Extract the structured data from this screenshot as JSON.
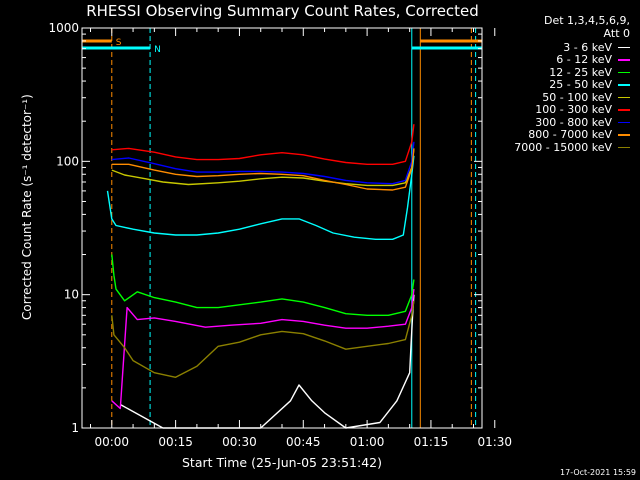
{
  "chart_data": {
    "type": "line",
    "title": "RHESSI Observing Summary Count Rates, Corrected",
    "xlabel": "Start Time (25-Jun-05 23:51:42)",
    "ylabel": "Corrected Count Rate (s⁻¹ detector⁻¹)",
    "yscale": "log",
    "ylim": [
      1,
      1000
    ],
    "xlim_min": [
      -7,
      87
    ],
    "y_ticks": [
      "1",
      "10",
      "100",
      "1000"
    ],
    "x_ticks": [
      {
        "t": 0,
        "label": "00:00"
      },
      {
        "t": 15,
        "label": "00:15"
      },
      {
        "t": 30,
        "label": "00:30"
      },
      {
        "t": 45,
        "label": "00:45"
      },
      {
        "t": 60,
        "label": "01:00"
      },
      {
        "t": 75,
        "label": "01:15"
      },
      {
        "t": 90,
        "label": "01:30"
      }
    ],
    "legend_header": [
      "Det 1,3,4,5,6,9,",
      "Att 0"
    ],
    "series": [
      {
        "name": "3 - 6 keV",
        "color": "#ffffff",
        "points": [
          [
            2,
            1.5
          ],
          [
            12,
            1
          ],
          [
            35,
            1
          ],
          [
            42,
            1.6
          ],
          [
            44,
            2.1
          ],
          [
            47,
            1.6
          ],
          [
            50,
            1.3
          ],
          [
            55,
            1
          ],
          [
            63,
            1.1
          ],
          [
            67,
            1.6
          ],
          [
            70,
            2.6
          ],
          [
            70.3,
            4
          ],
          [
            70.7,
            7
          ],
          [
            71,
            10
          ]
        ]
      },
      {
        "name": "6 - 12 keV",
        "color": "#ff00ff",
        "points": [
          [
            0,
            1.6
          ],
          [
            2,
            1.4
          ],
          [
            3.6,
            8
          ],
          [
            6,
            6.5
          ],
          [
            10,
            6.7
          ],
          [
            15,
            6.3
          ],
          [
            22,
            5.7
          ],
          [
            28,
            5.9
          ],
          [
            35,
            6.1
          ],
          [
            40,
            6.5
          ],
          [
            45,
            6.3
          ],
          [
            50,
            5.9
          ],
          [
            55,
            5.6
          ],
          [
            60,
            5.6
          ],
          [
            65,
            5.8
          ],
          [
            69,
            6
          ],
          [
            70.5,
            8
          ],
          [
            71,
            11
          ]
        ]
      },
      {
        "name": "12 - 25 keV",
        "color": "#00ff00",
        "points": [
          [
            0,
            20
          ],
          [
            0.5,
            14
          ],
          [
            1,
            11
          ],
          [
            3,
            9
          ],
          [
            6,
            10.5
          ],
          [
            10,
            9.5
          ],
          [
            15,
            8.8
          ],
          [
            20,
            8
          ],
          [
            25,
            8
          ],
          [
            30,
            8.4
          ],
          [
            35,
            8.8
          ],
          [
            40,
            9.3
          ],
          [
            45,
            8.8
          ],
          [
            50,
            8
          ],
          [
            55,
            7.2
          ],
          [
            60,
            7
          ],
          [
            65,
            7
          ],
          [
            69,
            7.5
          ],
          [
            70.5,
            10
          ],
          [
            71,
            13
          ]
        ]
      },
      {
        "name": "25 - 50 keV",
        "color": "#00ffff",
        "points": [
          [
            -1,
            60
          ],
          [
            0,
            37
          ],
          [
            1,
            33
          ],
          [
            5,
            31
          ],
          [
            10,
            29
          ],
          [
            15,
            28
          ],
          [
            20,
            28
          ],
          [
            25,
            29
          ],
          [
            30,
            31
          ],
          [
            35,
            34
          ],
          [
            40,
            37
          ],
          [
            44,
            37
          ],
          [
            48,
            33
          ],
          [
            52,
            29
          ],
          [
            57,
            27
          ],
          [
            62,
            26
          ],
          [
            66,
            26
          ],
          [
            68.5,
            28
          ],
          [
            69.5,
            45
          ],
          [
            70.5,
            80
          ],
          [
            71,
            110
          ]
        ]
      },
      {
        "name": "50 - 100 keV",
        "color": "#c8c800",
        "points": [
          [
            0,
            86
          ],
          [
            3,
            79
          ],
          [
            8,
            74
          ],
          [
            12,
            70
          ],
          [
            18,
            67
          ],
          [
            25,
            69
          ],
          [
            30,
            71
          ],
          [
            35,
            74
          ],
          [
            40,
            76
          ],
          [
            45,
            75
          ],
          [
            50,
            71
          ],
          [
            55,
            68
          ],
          [
            60,
            66
          ],
          [
            66,
            66
          ],
          [
            69,
            69
          ],
          [
            70.5,
            90
          ],
          [
            71,
            125
          ]
        ]
      },
      {
        "name": "100 - 300 keV",
        "color": "#ff0000",
        "points": [
          [
            0,
            122
          ],
          [
            4,
            125
          ],
          [
            10,
            117
          ],
          [
            15,
            108
          ],
          [
            20,
            103
          ],
          [
            25,
            103
          ],
          [
            30,
            105
          ],
          [
            35,
            112
          ],
          [
            40,
            116
          ],
          [
            45,
            112
          ],
          [
            50,
            104
          ],
          [
            55,
            98
          ],
          [
            60,
            95
          ],
          [
            66,
            95
          ],
          [
            69,
            100
          ],
          [
            70.5,
            140
          ],
          [
            71,
            190
          ]
        ]
      },
      {
        "name": "300 - 800 keV",
        "color": "#0000ff",
        "points": [
          [
            0,
            103
          ],
          [
            4,
            106
          ],
          [
            10,
            96
          ],
          [
            15,
            88
          ],
          [
            20,
            83
          ],
          [
            25,
            83
          ],
          [
            30,
            84
          ],
          [
            35,
            84
          ],
          [
            40,
            83
          ],
          [
            45,
            81
          ],
          [
            50,
            77
          ],
          [
            55,
            72
          ],
          [
            60,
            69
          ],
          [
            66,
            68
          ],
          [
            69,
            72
          ],
          [
            70.5,
            100
          ],
          [
            71,
            140
          ]
        ]
      },
      {
        "name": "800 - 7000 keV",
        "color": "#ff8c00",
        "points": [
          [
            0,
            95
          ],
          [
            4,
            95
          ],
          [
            10,
            86
          ],
          [
            15,
            80
          ],
          [
            20,
            77
          ],
          [
            25,
            78
          ],
          [
            30,
            80
          ],
          [
            35,
            81
          ],
          [
            40,
            80
          ],
          [
            45,
            78
          ],
          [
            50,
            72
          ],
          [
            55,
            67
          ],
          [
            60,
            62
          ],
          [
            66,
            61
          ],
          [
            69,
            64
          ],
          [
            70.5,
            88
          ],
          [
            71,
            125
          ]
        ]
      },
      {
        "name": "7000 - 15000 keV",
        "color": "#8b8000",
        "points": [
          [
            0,
            7
          ],
          [
            0.5,
            5
          ],
          [
            3,
            4
          ],
          [
            5,
            3.2
          ],
          [
            10,
            2.6
          ],
          [
            15,
            2.4
          ],
          [
            20,
            2.9
          ],
          [
            25,
            4.1
          ],
          [
            30,
            4.4
          ],
          [
            35,
            5
          ],
          [
            40,
            5.3
          ],
          [
            45,
            5.1
          ],
          [
            50,
            4.5
          ],
          [
            55,
            3.9
          ],
          [
            60,
            4.1
          ],
          [
            65,
            4.3
          ],
          [
            69,
            4.6
          ],
          [
            70.5,
            7
          ],
          [
            71,
            9
          ]
        ]
      }
    ],
    "markers": {
      "saa_label": "S",
      "night_label": "N",
      "saa_color": "#ff8c00",
      "night_color": "#00ffff"
    }
  },
  "timestamp": "17-Oct-2021 15:59"
}
